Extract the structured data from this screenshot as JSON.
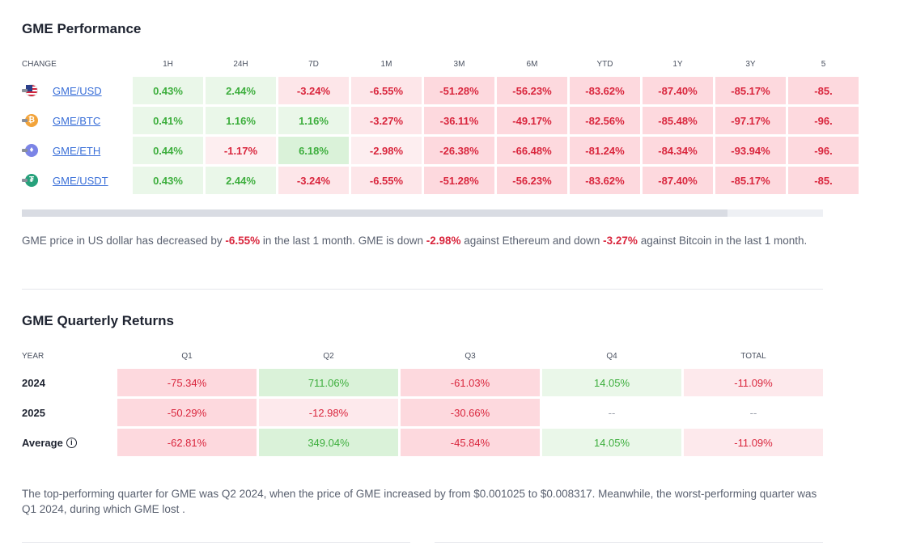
{
  "performance": {
    "title": "GME Performance",
    "headers": [
      "CHANGE",
      "1H",
      "24H",
      "7D",
      "1M",
      "3M",
      "6M",
      "YTD",
      "1Y",
      "3Y",
      "5"
    ],
    "rows": [
      {
        "pair": "GME/USD",
        "icon": "us-flag-icon",
        "values": [
          "0.43%",
          "2.44%",
          "-3.24%",
          "-6.55%",
          "-51.28%",
          "-56.23%",
          "-83.62%",
          "-87.40%",
          "-85.17%",
          "-85."
        ]
      },
      {
        "pair": "GME/BTC",
        "icon": "bitcoin-icon",
        "values": [
          "0.41%",
          "1.16%",
          "1.16%",
          "-3.27%",
          "-36.11%",
          "-49.17%",
          "-82.56%",
          "-85.48%",
          "-97.17%",
          "-96."
        ]
      },
      {
        "pair": "GME/ETH",
        "icon": "ethereum-icon",
        "values": [
          "0.44%",
          "-1.17%",
          "6.18%",
          "-2.98%",
          "-26.38%",
          "-66.48%",
          "-81.24%",
          "-84.34%",
          "-93.94%",
          "-96."
        ]
      },
      {
        "pair": "GME/USDT",
        "icon": "tether-icon",
        "values": [
          "0.43%",
          "2.44%",
          "-3.24%",
          "-6.55%",
          "-51.28%",
          "-56.23%",
          "-83.62%",
          "-87.40%",
          "-85.17%",
          "-85."
        ]
      }
    ],
    "description": {
      "p1": "GME price in US dollar has decreased by ",
      "v1": "-6.55%",
      "p2": " in the last 1 month. GME is down ",
      "v2": "-2.98%",
      "p3": " against Ethereum and down ",
      "v3": "-3.27%",
      "p4": " against Bitcoin in the last 1 month."
    }
  },
  "quarterly": {
    "title": "GME Quarterly Returns",
    "headers": [
      "YEAR",
      "Q1",
      "Q2",
      "Q3",
      "Q4",
      "TOTAL"
    ],
    "rows": [
      {
        "label": "2024",
        "values": [
          "-75.34%",
          "711.06%",
          "-61.03%",
          "14.05%",
          "-11.09%"
        ]
      },
      {
        "label": "2025",
        "values": [
          "-50.29%",
          "-12.98%",
          "-30.66%",
          "--",
          "--"
        ]
      },
      {
        "label": "Average",
        "values": [
          "-62.81%",
          "349.04%",
          "-45.84%",
          "14.05%",
          "-11.09%"
        ]
      }
    ],
    "info_icon": "info-icon",
    "description": "The top-performing quarter for GME was Q2 2024, when the price of GME increased by from $0.001025 to $0.008317. Meanwhile, the worst-performing quarter was Q1 2024, during which GME lost ."
  },
  "colors": {
    "positive_text": "#3dae3d",
    "negative_text": "#d9263d",
    "link": "#3a6fd8"
  }
}
